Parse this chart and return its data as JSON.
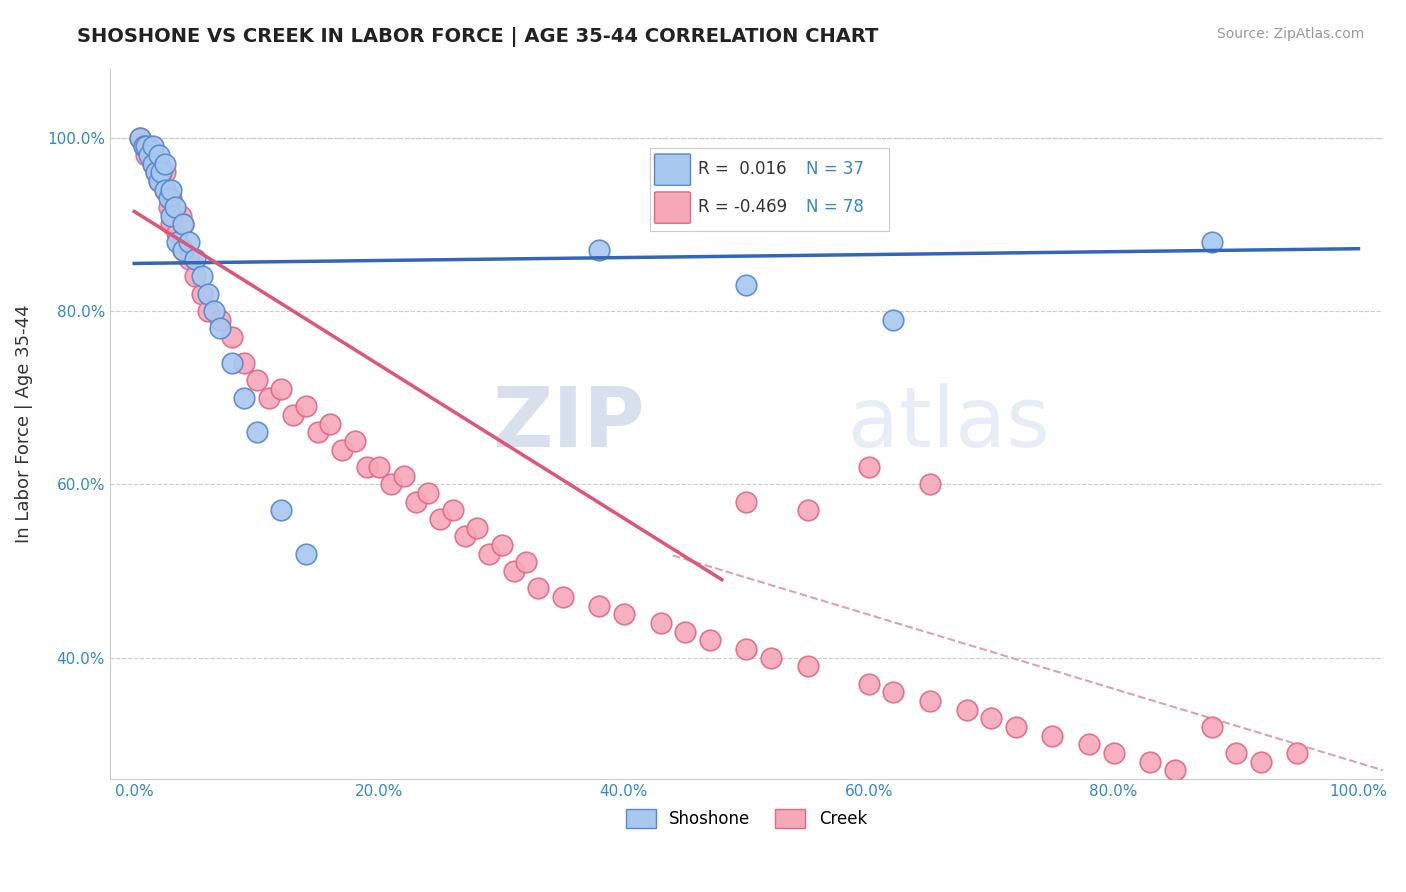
{
  "title": "SHOSHONE VS CREEK IN LABOR FORCE | AGE 35-44 CORRELATION CHART",
  "source_text": "Source: ZipAtlas.com",
  "ylabel": "In Labor Force | Age 35-44",
  "xlim": [
    -0.02,
    1.02
  ],
  "ylim": [
    0.26,
    1.08
  ],
  "xticks": [
    0.0,
    0.2,
    0.4,
    0.6,
    0.8,
    1.0
  ],
  "yticks": [
    0.4,
    0.6,
    0.8,
    1.0
  ],
  "xticklabels": [
    "0.0%",
    "20.0%",
    "40.0%",
    "60.0%",
    "80.0%",
    "100.0%"
  ],
  "yticklabels": [
    "40.0%",
    "60.0%",
    "80.0%",
    "100.0%"
  ],
  "shoshone_color": "#A8C8F0",
  "creek_color": "#F5A8B8",
  "shoshone_edge": "#5588CC",
  "creek_edge": "#E06888",
  "blue_line_color": "#3366BB",
  "pink_line_color": "#DD5577",
  "dashed_line_color": "#E0A0B0",
  "watermark_text": "ZIPatlas",
  "watermark_color": "#D0DFF0",
  "title_color": "#222222",
  "axis_label_color": "#333333",
  "tick_color": "#3388CC",
  "legend_box_color": "#F0F0F8",
  "legend_border_color": "#CCCCDD",
  "blue_line_x": [
    0.0,
    1.0
  ],
  "blue_line_y": [
    0.855,
    0.872
  ],
  "pink_line_x": [
    0.0,
    0.48
  ],
  "pink_line_y": [
    0.915,
    0.49
  ],
  "dash_line_x": [
    0.44,
    1.02
  ],
  "dash_line_y": [
    0.518,
    0.27
  ],
  "shoshone_x": [
    0.005,
    0.008,
    0.01,
    0.012,
    0.015,
    0.015,
    0.018,
    0.02,
    0.02,
    0.022,
    0.025,
    0.025,
    0.028,
    0.03,
    0.03,
    0.033,
    0.035,
    0.04,
    0.04,
    0.045,
    0.05,
    0.055,
    0.06,
    0.065,
    0.07,
    0.08,
    0.09,
    0.1,
    0.12,
    0.14,
    0.38,
    0.5,
    0.62,
    0.88
  ],
  "shoshone_y": [
    1.0,
    0.99,
    0.99,
    0.98,
    0.97,
    0.99,
    0.96,
    0.95,
    0.98,
    0.96,
    0.94,
    0.97,
    0.93,
    0.91,
    0.94,
    0.92,
    0.88,
    0.87,
    0.9,
    0.88,
    0.86,
    0.84,
    0.82,
    0.8,
    0.78,
    0.74,
    0.7,
    0.66,
    0.57,
    0.52,
    0.87,
    0.83,
    0.79,
    0.88
  ],
  "creek_x": [
    0.005,
    0.008,
    0.01,
    0.012,
    0.015,
    0.015,
    0.018,
    0.02,
    0.02,
    0.022,
    0.025,
    0.025,
    0.028,
    0.03,
    0.03,
    0.035,
    0.038,
    0.04,
    0.04,
    0.045,
    0.05,
    0.055,
    0.06,
    0.07,
    0.08,
    0.09,
    0.1,
    0.11,
    0.12,
    0.13,
    0.14,
    0.15,
    0.16,
    0.17,
    0.18,
    0.19,
    0.2,
    0.21,
    0.22,
    0.23,
    0.24,
    0.25,
    0.26,
    0.27,
    0.28,
    0.29,
    0.3,
    0.31,
    0.32,
    0.33,
    0.35,
    0.38,
    0.4,
    0.43,
    0.45,
    0.47,
    0.5,
    0.52,
    0.55,
    0.6,
    0.62,
    0.65,
    0.68,
    0.7,
    0.72,
    0.75,
    0.78,
    0.8,
    0.83,
    0.85,
    0.88,
    0.9,
    0.92,
    0.95,
    0.5,
    0.55,
    0.6,
    0.65
  ],
  "creek_y": [
    1.0,
    0.99,
    0.98,
    0.99,
    0.97,
    0.98,
    0.96,
    0.95,
    0.97,
    0.95,
    0.94,
    0.96,
    0.92,
    0.9,
    0.93,
    0.89,
    0.91,
    0.87,
    0.9,
    0.86,
    0.84,
    0.82,
    0.8,
    0.79,
    0.77,
    0.74,
    0.72,
    0.7,
    0.71,
    0.68,
    0.69,
    0.66,
    0.67,
    0.64,
    0.65,
    0.62,
    0.62,
    0.6,
    0.61,
    0.58,
    0.59,
    0.56,
    0.57,
    0.54,
    0.55,
    0.52,
    0.53,
    0.5,
    0.51,
    0.48,
    0.47,
    0.46,
    0.45,
    0.44,
    0.43,
    0.42,
    0.41,
    0.4,
    0.39,
    0.37,
    0.36,
    0.35,
    0.34,
    0.33,
    0.32,
    0.31,
    0.3,
    0.29,
    0.28,
    0.27,
    0.32,
    0.29,
    0.28,
    0.29,
    0.58,
    0.57,
    0.62,
    0.6
  ]
}
